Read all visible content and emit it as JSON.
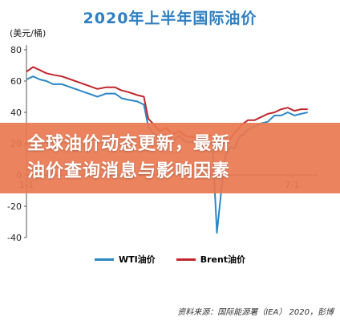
{
  "colors": {
    "title": "#2f7fc1",
    "wti": "#2d86c5",
    "brent": "#c0272d",
    "banner": "#e97850"
  },
  "banner": {
    "line1": "全球油价动态更新，最新",
    "line2": "油价查询消息与影响因素"
  },
  "source": "资料来源：国际能源署（IEA） 2020，彭博",
  "chart_data": {
    "type": "line",
    "title": "2020年上半年国际油价",
    "ylabel": "(美元/桶)",
    "xlabel": "",
    "ylim": [
      -40,
      80
    ],
    "yticks": [
      80,
      60,
      40,
      20,
      0,
      -20,
      -40
    ],
    "xlim": [
      0,
      130
    ],
    "xticks": [
      {
        "x": 0,
        "label": "1-1"
      },
      {
        "x": 120,
        "label": "7-1"
      }
    ],
    "legend": "bottom",
    "grid": false,
    "series": [
      {
        "name": "WTI油价",
        "x": [
          0,
          3,
          6,
          9,
          12,
          16,
          20,
          24,
          28,
          32,
          36,
          40,
          43,
          46,
          50,
          53,
          55,
          57,
          60,
          63,
          66,
          69,
          72,
          75,
          78,
          81,
          84,
          86,
          88,
          90,
          92,
          94,
          96,
          98,
          100,
          103,
          106,
          109,
          112,
          115,
          118,
          121,
          124,
          127
        ],
        "y": [
          61,
          63,
          61,
          60,
          58,
          58,
          56,
          54,
          52,
          50,
          52,
          52,
          49,
          48,
          47,
          45,
          31,
          27,
          24,
          26,
          22,
          25,
          21,
          21,
          23,
          21,
          20,
          -37,
          -10,
          13,
          18,
          17,
          24,
          26,
          29,
          31,
          33,
          34,
          38,
          38,
          40,
          38,
          39,
          40
        ]
      },
      {
        "name": "Brent油价",
        "x": [
          0,
          3,
          6,
          9,
          12,
          16,
          20,
          24,
          28,
          32,
          36,
          40,
          43,
          46,
          50,
          53,
          55,
          57,
          60,
          63,
          66,
          69,
          72,
          75,
          78,
          81,
          84,
          86,
          88,
          90,
          92,
          94,
          96,
          98,
          100,
          103,
          106,
          109,
          112,
          115,
          118,
          121,
          124,
          127
        ],
        "y": [
          66,
          69,
          67,
          65,
          64,
          63,
          61,
          59,
          57,
          55,
          56,
          56,
          54,
          53,
          51,
          50,
          36,
          33,
          28,
          30,
          26,
          28,
          25,
          24,
          26,
          25,
          25,
          23,
          19,
          22,
          23,
          27,
          30,
          33,
          35,
          35,
          37,
          39,
          40,
          42,
          43,
          41,
          42,
          42
        ]
      }
    ]
  }
}
